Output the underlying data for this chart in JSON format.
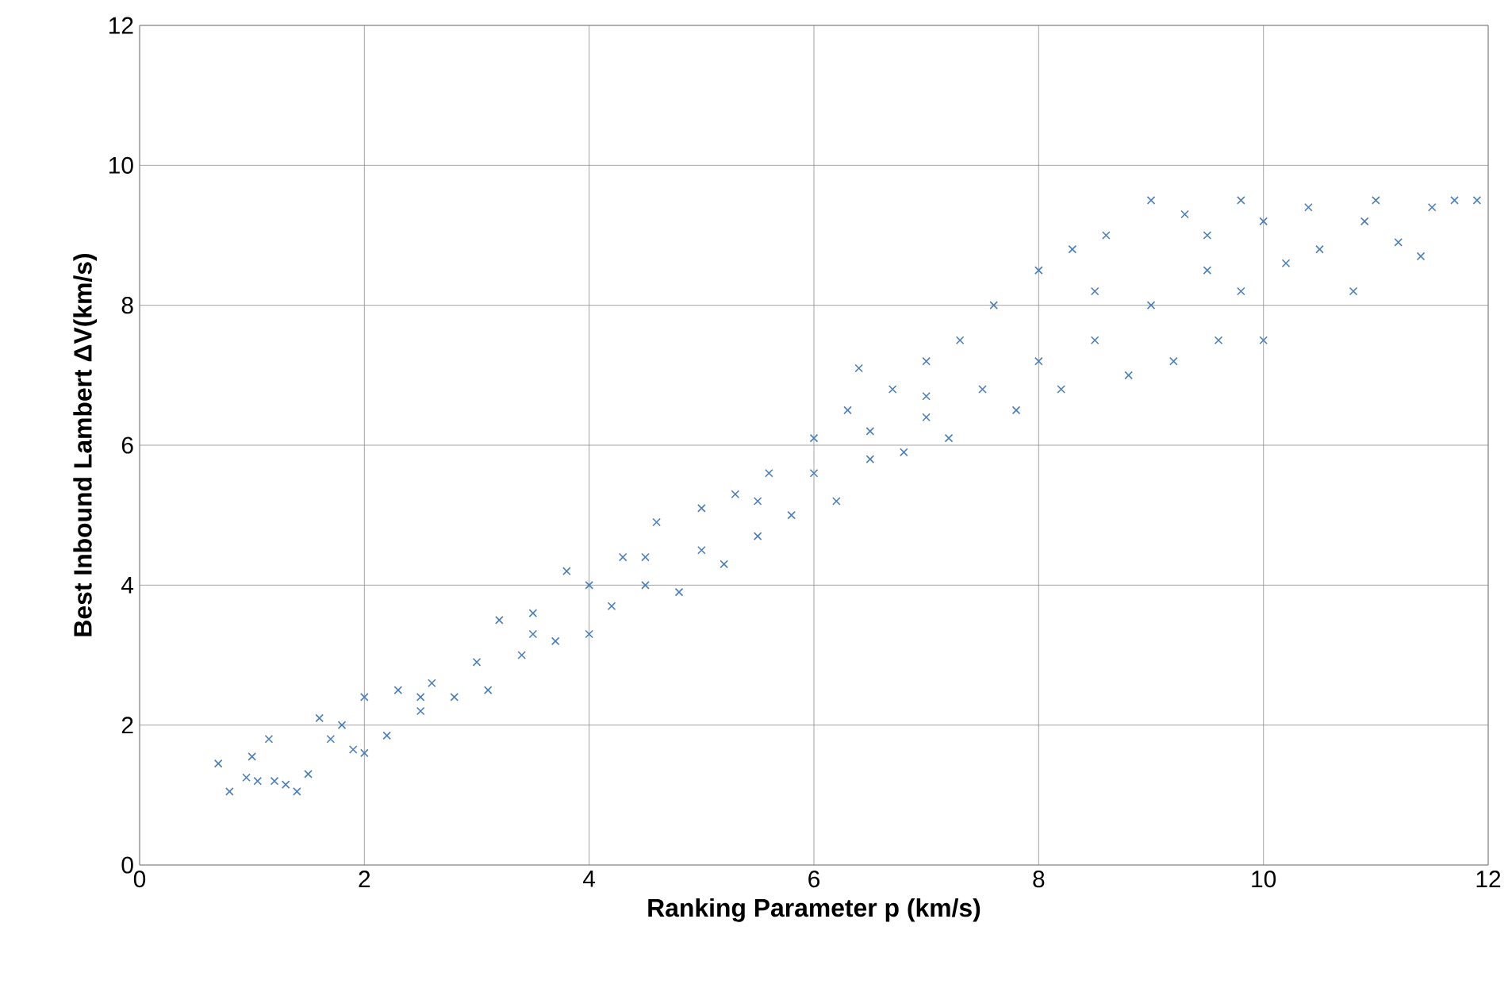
{
  "chart_data": {
    "type": "scatter",
    "xlabel": "Ranking Parameter p (km/s)",
    "ylabel": "Best Inbound Lambert ΔV(km/s)",
    "xlim": [
      0,
      12
    ],
    "ylim": [
      0,
      12
    ],
    "xticks": [
      0,
      2,
      4,
      6,
      8,
      10,
      12
    ],
    "yticks": [
      0,
      2,
      4,
      6,
      8,
      10,
      12
    ],
    "grid": true,
    "marker": "cross",
    "series": [
      {
        "color": "#4a7ebb",
        "x": [
          0.7,
          0.8,
          0.95,
          1.0,
          1.05,
          1.15,
          1.2,
          1.3,
          1.4,
          1.5,
          1.6,
          1.7,
          1.8,
          1.9,
          2.0,
          2.0,
          2.2,
          2.3,
          2.5,
          2.6,
          2.8,
          3.0,
          3.1,
          3.2,
          3.4,
          3.5,
          3.7,
          3.8,
          4.0,
          4.0,
          4.2,
          4.3,
          4.5,
          4.6,
          4.8,
          5.0,
          5.0,
          5.2,
          5.3,
          5.5,
          5.6,
          5.8,
          6.0,
          6.0,
          6.2,
          6.3,
          6.4,
          6.5,
          6.7,
          6.8,
          7.0,
          7.0,
          7.2,
          7.3,
          7.5,
          7.6,
          7.8,
          8.0,
          8.0,
          8.2,
          8.3,
          8.5,
          8.6,
          8.8,
          9.0,
          9.0,
          9.2,
          9.3,
          9.5,
          9.6,
          9.8,
          9.8,
          10.0,
          10.0,
          10.2,
          10.4,
          10.5,
          10.8,
          10.9,
          11.0,
          11.2,
          11.4,
          11.5,
          11.7,
          11.9,
          7.0,
          5.5,
          4.5,
          8.5,
          9.5,
          6.5,
          3.5,
          2.5
        ],
        "values": [
          1.45,
          1.05,
          1.25,
          1.55,
          1.2,
          1.8,
          1.2,
          1.15,
          1.05,
          1.3,
          2.1,
          1.8,
          2.0,
          1.65,
          1.6,
          2.4,
          1.85,
          2.5,
          2.2,
          2.6,
          2.4,
          2.9,
          2.5,
          3.5,
          3.0,
          3.6,
          3.2,
          4.2,
          3.3,
          4.0,
          3.7,
          4.4,
          4.0,
          4.9,
          3.9,
          4.5,
          5.1,
          4.3,
          5.3,
          4.7,
          5.6,
          5.0,
          5.6,
          6.1,
          5.2,
          6.5,
          7.1,
          5.8,
          6.8,
          5.9,
          6.4,
          7.2,
          6.1,
          7.5,
          6.8,
          8.0,
          6.5,
          7.2,
          8.5,
          6.8,
          8.8,
          7.5,
          9.0,
          7.0,
          9.5,
          8.0,
          7.2,
          9.3,
          8.5,
          7.5,
          9.5,
          8.2,
          7.5,
          9.2,
          8.6,
          9.4,
          8.8,
          8.2,
          9.2,
          9.5,
          8.9,
          8.7,
          9.4,
          9.5,
          9.5,
          6.7,
          5.2,
          4.4,
          8.2,
          9.0,
          6.2,
          3.3,
          2.4
        ]
      }
    ]
  }
}
